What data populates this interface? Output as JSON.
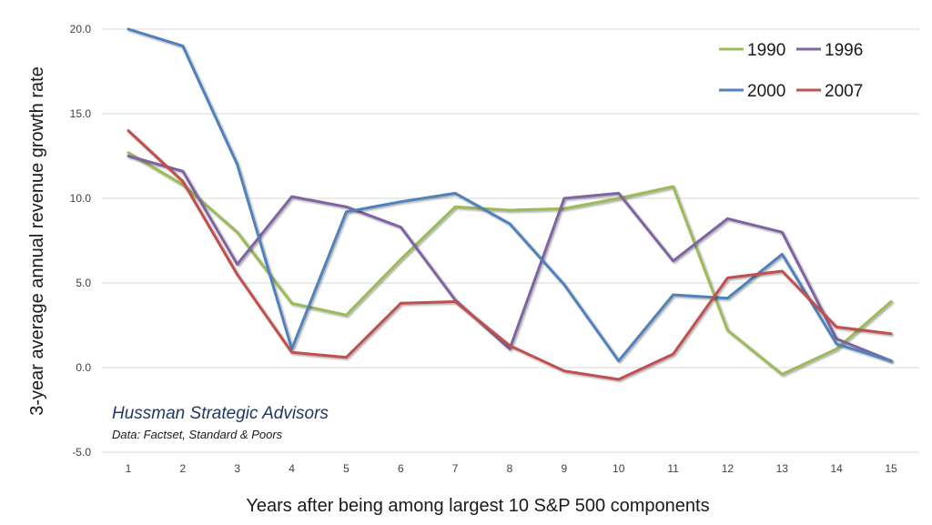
{
  "chart_data": {
    "type": "line",
    "xlabel": "Years after being among largest 10 S&P 500 components",
    "ylabel": "3-year average annual revenue growth rate",
    "x": [
      1,
      2,
      3,
      4,
      5,
      6,
      7,
      8,
      9,
      10,
      11,
      12,
      13,
      14,
      15
    ],
    "ylim": [
      -5,
      20
    ],
    "yticks": [
      "20.0",
      "15.0",
      "10.0",
      "5.0",
      "0.0",
      "-5.0"
    ],
    "ytick_values": [
      20,
      15,
      10,
      5,
      0,
      -5
    ],
    "grid": true,
    "legend_position": "top-right",
    "series": [
      {
        "name": "1990",
        "color": "#9bbb59",
        "values": [
          12.7,
          10.8,
          8.0,
          3.8,
          3.1,
          6.4,
          9.5,
          9.3,
          9.4,
          10.0,
          10.7,
          2.2,
          -0.4,
          1.1,
          3.9
        ]
      },
      {
        "name": "1996",
        "color": "#8064a2",
        "values": [
          12.5,
          11.6,
          6.1,
          10.1,
          9.5,
          8.3,
          4.0,
          1.1,
          10.0,
          10.3,
          6.3,
          8.8,
          8.0,
          1.7,
          0.4
        ]
      },
      {
        "name": "2000",
        "color": "#4f81bd",
        "values": [
          20.0,
          19.0,
          12.0,
          1.1,
          9.2,
          9.8,
          10.3,
          8.5,
          4.9,
          0.4,
          4.3,
          4.1,
          6.7,
          1.4,
          0.4
        ]
      },
      {
        "name": "2007",
        "color": "#c0504d",
        "values": [
          14.0,
          11.0,
          5.5,
          0.9,
          0.6,
          3.8,
          3.9,
          1.3,
          -0.2,
          -0.7,
          0.8,
          5.3,
          5.7,
          2.4,
          2.0
        ]
      }
    ]
  },
  "source": {
    "title": "Hussman Strategic Advisors",
    "subtitle": "Data: Factset,  Standard & Poors"
  }
}
